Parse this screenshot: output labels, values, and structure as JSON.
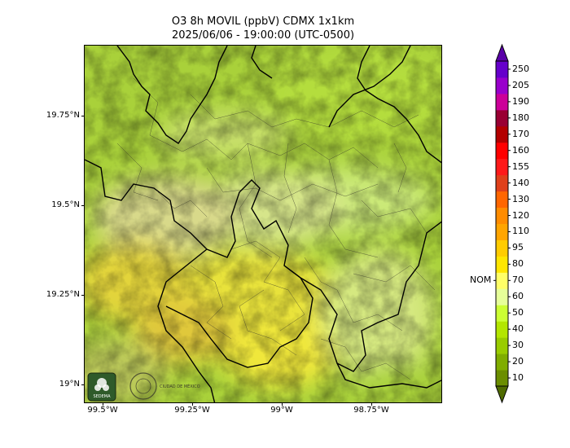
{
  "header": {
    "title_line1": "O3 8h MOVIL (ppbV) CDMX 1x1km",
    "title_line2": "2025/06/06 - 19:00:00 (UTC-0500)"
  },
  "map": {
    "x_ticks": [
      "99.5°W",
      "99.25°W",
      "99°W",
      "98.75°W"
    ],
    "y_ticks": [
      "19.75°N",
      "19.5°N",
      "19.25°N",
      "19°N"
    ],
    "logos": [
      "SEDEMA",
      "CIUDAD DE MÉXICO"
    ]
  },
  "colorbar": {
    "reference_label": "NOM",
    "reference_value": 70,
    "levels": [
      10,
      20,
      30,
      40,
      50,
      60,
      70,
      80,
      95,
      110,
      120,
      130,
      140,
      155,
      160,
      170,
      180,
      190,
      205,
      250
    ],
    "level_labels": [
      "10",
      "20",
      "30",
      "40",
      "50",
      "60",
      "70",
      "80",
      "95",
      "110",
      "120",
      "130",
      "140",
      "155",
      "160",
      "170",
      "180",
      "190",
      "205",
      "250"
    ],
    "colors": [
      "#6b8e00",
      "#80ad00",
      "#99cc00",
      "#b3e600",
      "#ccff33",
      "#e6ff99",
      "#ffff66",
      "#ffe600",
      "#ffcc00",
      "#ffa500",
      "#ff8c00",
      "#ff6600",
      "#e0401a",
      "#ff1a1a",
      "#ff0000",
      "#b30000",
      "#990033",
      "#cc0099",
      "#9900cc",
      "#6600cc"
    ],
    "under_color": "#4f6b00",
    "over_color": "#5a00a8"
  }
}
